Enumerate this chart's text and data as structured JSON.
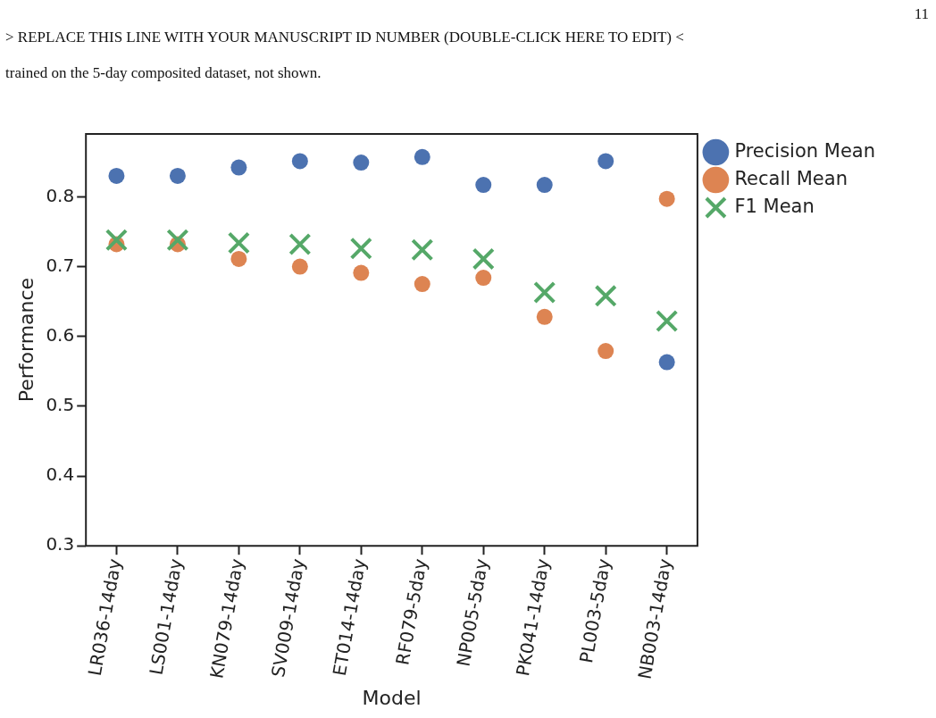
{
  "chart_data": {
    "type": "scatter",
    "xlabel": "Model",
    "ylabel": "Performance",
    "annotations": [
      "11",
      "> REPLACE THIS LINE WITH YOUR MANUSCRIPT ID NUMBER (DOUBLE-CLICK HERE TO EDIT) <",
      "trained on the 5-day composited dataset, not shown."
    ],
    "categories": [
      "LR036-14day",
      "LS001-14day",
      "KN079-14day",
      "SV009-14day",
      "ET014-14day",
      "RF079-5day",
      "NP005-5day",
      "PK041-14day",
      "PL003-5day",
      "NB003-14day"
    ],
    "series": [
      {
        "name": "Precision Mean",
        "color": "#4c72b0",
        "marker": "circle",
        "values": [
          0.83,
          0.83,
          0.842,
          0.851,
          0.849,
          0.857,
          0.817,
          0.817,
          0.851,
          0.563
        ]
      },
      {
        "name": "Recall Mean",
        "color": "#dd8452",
        "marker": "circle",
        "values": [
          0.732,
          0.732,
          0.711,
          0.7,
          0.691,
          0.675,
          0.684,
          0.628,
          0.579,
          0.797
        ]
      },
      {
        "name": "F1 Mean",
        "color": "#55a868",
        "marker": "cross",
        "values": [
          0.738,
          0.738,
          0.734,
          0.732,
          0.726,
          0.724,
          0.711,
          0.663,
          0.658,
          0.622
        ]
      }
    ],
    "ylim": [
      0.3,
      0.89
    ],
    "yticks": [
      0.3,
      0.4,
      0.5,
      0.6,
      0.7,
      0.8
    ],
    "grid": false,
    "legend": "top right"
  }
}
